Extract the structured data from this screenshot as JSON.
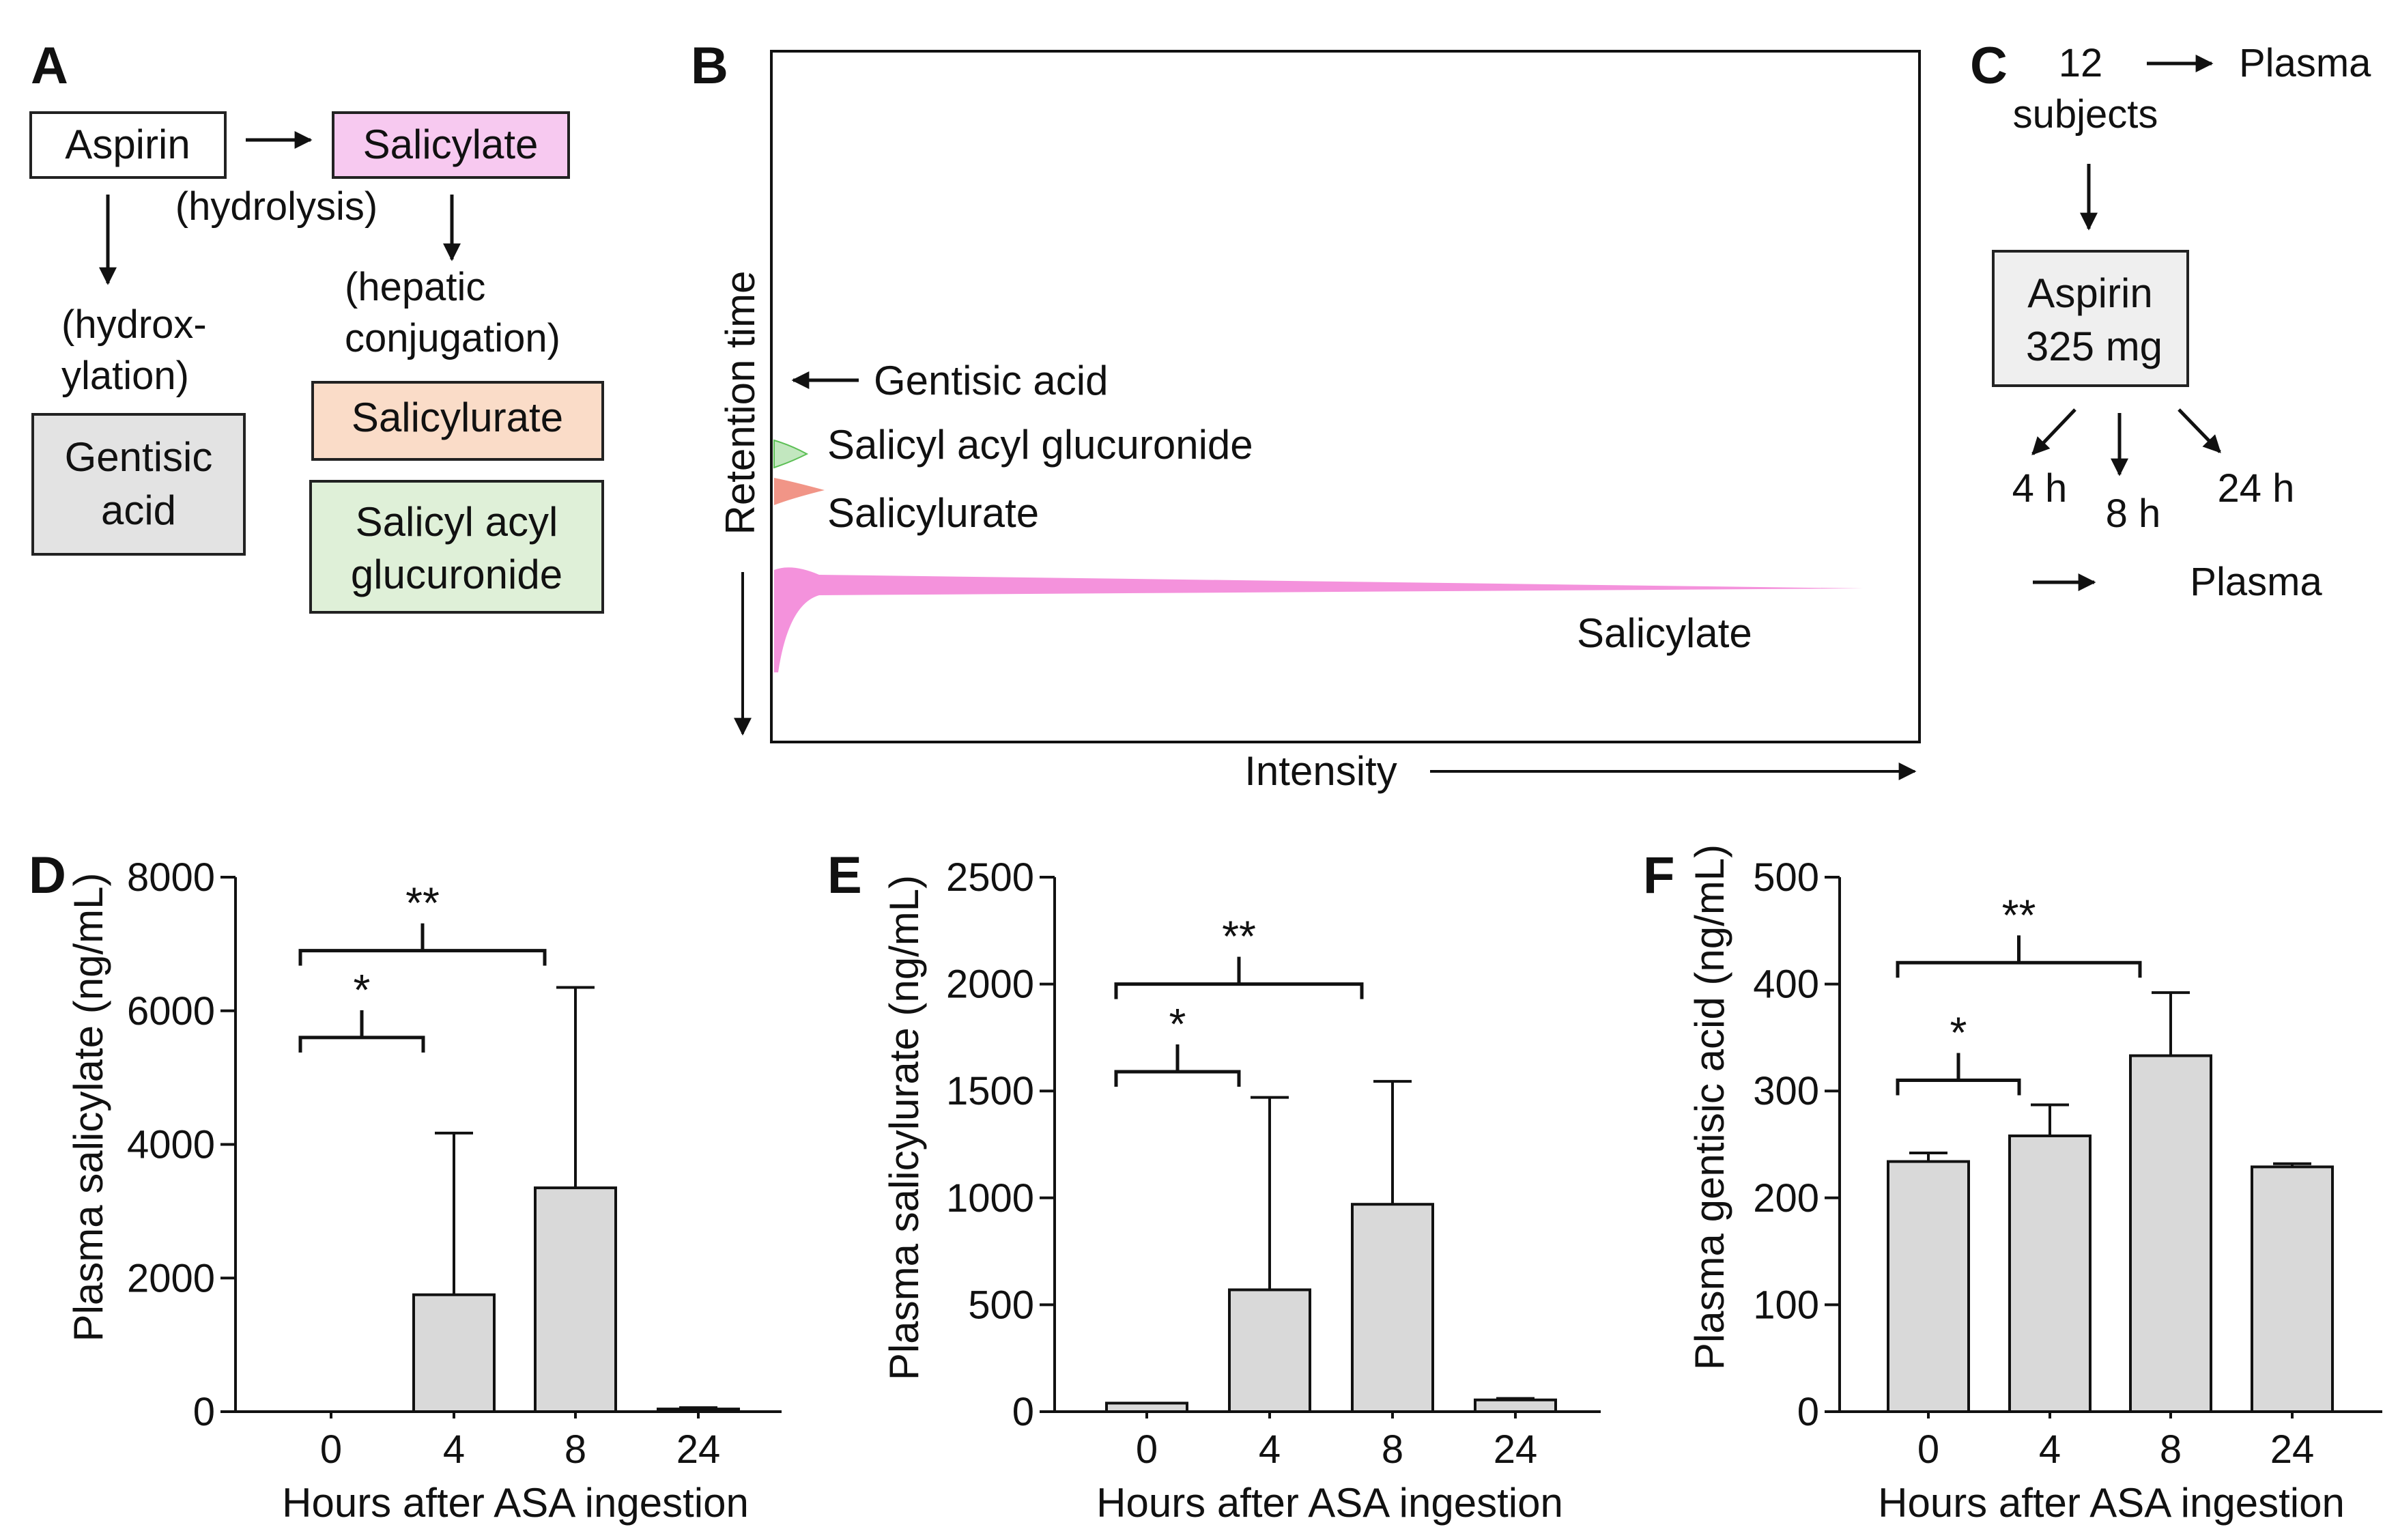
{
  "panel_a": {
    "letter": "A",
    "aspirin": "Aspirin",
    "salicylate": "Salicylate",
    "hydrolysis": "(hydrolysis)",
    "hydroxylation_1": "(hydrox-",
    "hydroxylation_2": "ylation)",
    "hepatic_1": "(hepatic",
    "hepatic_2": "conjugation)",
    "gentisic_1": "Gentisic",
    "gentisic_2": "acid",
    "salicylurate": "Salicylurate",
    "glucuronide_1": "Salicyl acyl",
    "glucuronide_2": "glucuronide",
    "colors": {
      "aspirin": "#ffffff",
      "salicylate": "#f7c9f0",
      "gentisic": "#e3e3e3",
      "salicylurate": "#fadcc8",
      "glucuronide": "#dff0d8"
    }
  },
  "panel_b": {
    "letter": "B",
    "ylabel": "Retention time",
    "xlabel": "Intensity",
    "labels": {
      "gentisic": "Gentisic acid",
      "glucuronide": "Salicyl acyl glucuronide",
      "salicylurate": "Salicylurate",
      "salicylate": "Salicylate"
    },
    "colors": {
      "glucuronide": "#8fd48a",
      "salicylurate": "#f08a7a",
      "salicylate": "#f27fd6"
    }
  },
  "panel_c": {
    "letter": "C",
    "subjects_count": "12",
    "subjects_word": "subjects",
    "plasma_top": "Plasma",
    "dose_1": "Aspirin",
    "dose_2": "325 mg",
    "t4": "4 h",
    "t8": "8 h",
    "t24": "24 h",
    "plasma_bottom": "Plasma",
    "box_color": "#efefef"
  },
  "chart_data": [
    {
      "panel": "D",
      "type": "bar",
      "categories": [
        "0",
        "4",
        "8",
        "24"
      ],
      "values": [
        0,
        1750,
        3350,
        40
      ],
      "error_upper": [
        0,
        4170,
        6350,
        60
      ],
      "ylim": [
        0,
        8000
      ],
      "yticks": [
        0,
        2000,
        4000,
        6000,
        8000
      ],
      "ylabel": "Plasma salicylate (ng/mL)",
      "xlabel": "Hours after ASA ingestion",
      "bar_color": "#d9d9d9",
      "significance": [
        {
          "from": 0,
          "to": 1,
          "label": "*",
          "y": 5600
        },
        {
          "from": 0,
          "to": 2,
          "label": "**",
          "y": 6900
        }
      ]
    },
    {
      "panel": "E",
      "type": "bar",
      "categories": [
        "0",
        "4",
        "8",
        "24"
      ],
      "values": [
        40,
        570,
        970,
        55
      ],
      "error_upper": [
        40,
        1470,
        1545,
        62
      ],
      "ylim": [
        0,
        2500
      ],
      "yticks": [
        0,
        500,
        1000,
        1500,
        2000,
        2500
      ],
      "ylabel": "Plasma salicylurate (ng/mL)",
      "xlabel": "Hours after ASA ingestion",
      "bar_color": "#d9d9d9",
      "significance": [
        {
          "from": 0,
          "to": 1,
          "label": "*",
          "y": 1590
        },
        {
          "from": 0,
          "to": 2,
          "label": "**",
          "y": 2000
        }
      ]
    },
    {
      "panel": "F",
      "type": "bar",
      "categories": [
        "0",
        "4",
        "8",
        "24"
      ],
      "values": [
        234,
        258,
        333,
        229
      ],
      "error_upper": [
        242,
        287,
        392,
        232
      ],
      "ylim": [
        0,
        500
      ],
      "yticks": [
        0,
        100,
        200,
        300,
        400,
        500
      ],
      "ylabel": "Plasma gentisic acid (ng/mL)",
      "xlabel": "Hours after ASA ingestion",
      "bar_color": "#d9d9d9",
      "significance": [
        {
          "from": 0,
          "to": 1,
          "label": "*",
          "y": 310
        },
        {
          "from": 0,
          "to": 2,
          "label": "**",
          "y": 420
        }
      ]
    }
  ]
}
